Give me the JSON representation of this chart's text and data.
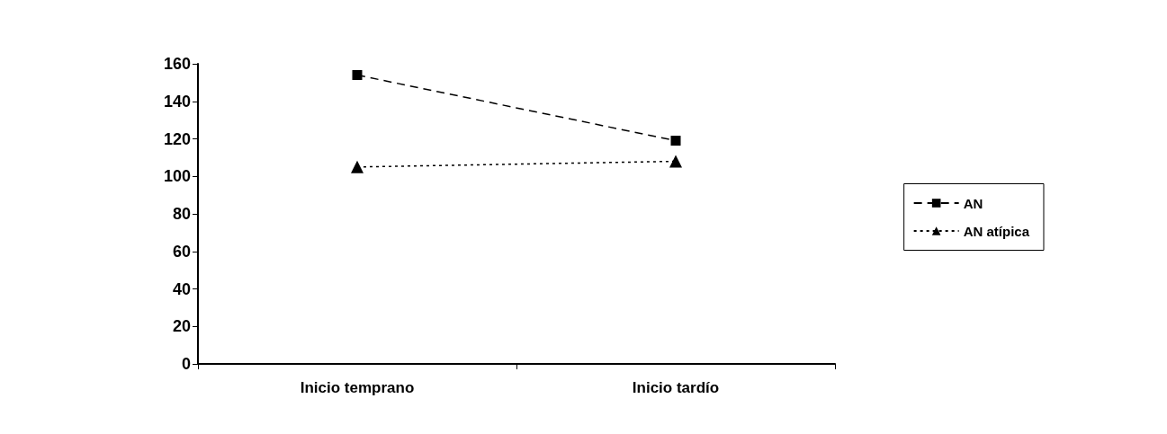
{
  "chart_data": {
    "type": "line",
    "categories": [
      "Inicio temprano",
      "Inicio tardío"
    ],
    "series": [
      {
        "name": "AN",
        "color": "#000000",
        "values": [
          154,
          119
        ],
        "marker": "square",
        "line_style": "dashed"
      },
      {
        "name": "AN atípica",
        "color": "#000000",
        "values": [
          105,
          108
        ],
        "marker": "triangle",
        "line_style": "dotted"
      }
    ],
    "ylim": [
      0,
      160
    ],
    "yticks": [
      0,
      20,
      40,
      60,
      80,
      100,
      120,
      140,
      160
    ],
    "grid": false,
    "legend": "right"
  }
}
